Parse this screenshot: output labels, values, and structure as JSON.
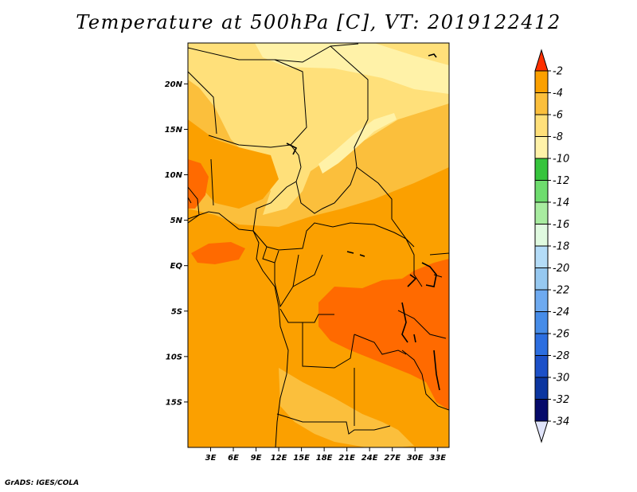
{
  "title": "Temperature at 500hPa [C], VT: 2019122412",
  "footer": "GrADS: IGES/COLA",
  "map": {
    "lon_range": [
      0,
      34.5
    ],
    "lat_range": [
      -20,
      24.5
    ],
    "lat_ticks": [
      "20N",
      "15N",
      "10N",
      "5N",
      "EQ",
      "5S",
      "10S",
      "15S"
    ],
    "lon_ticks": [
      "3E",
      "6E",
      "9E",
      "12E",
      "15E",
      "18E",
      "21E",
      "24E",
      "27E",
      "30E",
      "33E"
    ],
    "field_colors": {
      "c_-2_-4": "#ff6a00",
      "c_-4_-6": "#fba000",
      "c_-6_-8": "#fbbf3c",
      "c_-8_-10": "#ffe07a",
      "c_-10_-12": "#fff2a8"
    }
  },
  "colorbar": {
    "labels": [
      "-2",
      "-4",
      "-6",
      "-8",
      "-10",
      "-12",
      "-14",
      "-16",
      "-18",
      "-20",
      "-22",
      "-24",
      "-26",
      "-28",
      "-30",
      "-32",
      "-34"
    ],
    "colors": [
      "#ff6a00",
      "#fba000",
      "#fbbf3c",
      "#ffe07a",
      "#fff2a8",
      "#36c43c",
      "#6edc6e",
      "#a8eca0",
      "#e0fae0",
      "#b4dcf8",
      "#96c8f0",
      "#6eaaf0",
      "#468ce8",
      "#2c6ee0",
      "#1c50c8",
      "#0c36a0",
      "#060a6a"
    ],
    "top_arrow_color": "#ff3000",
    "bottom_arrow_color": "#e0e4fa"
  }
}
